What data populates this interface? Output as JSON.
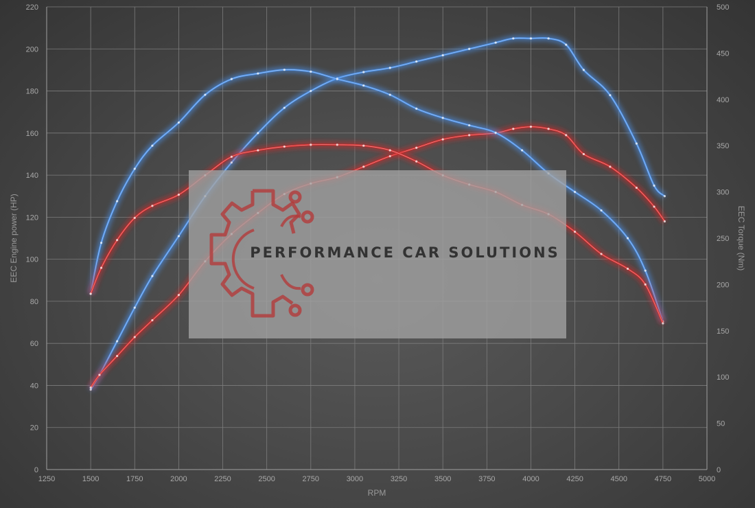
{
  "chart_data": {
    "type": "line",
    "xlabel": "RPM",
    "ylabel": "EEC Engine power (HP)",
    "y2label": "EEC Torque (Nm)",
    "xlim": [
      1250,
      5000
    ],
    "ylim": [
      0,
      220
    ],
    "y2lim": [
      0,
      500
    ],
    "x_ticks": [
      1250,
      1500,
      1750,
      2000,
      2250,
      2500,
      2750,
      3000,
      3250,
      3500,
      3750,
      4000,
      4250,
      4500,
      4750,
      5000
    ],
    "y_ticks": [
      0,
      20,
      40,
      60,
      80,
      100,
      120,
      140,
      160,
      180,
      200,
      220
    ],
    "y2_ticks": [
      0,
      50,
      100,
      150,
      200,
      250,
      300,
      350,
      400,
      450,
      500
    ],
    "grid": true,
    "legend": "none",
    "series": [
      {
        "axis": "left",
        "color": "#4a8fe7",
        "x": [
          1500,
          1550,
          1650,
          1750,
          1850,
          2000,
          2150,
          2300,
          2450,
          2600,
          2750,
          2900,
          3050,
          3200,
          3350,
          3500,
          3650,
          3800,
          3900,
          4000,
          4100,
          4200,
          4300,
          4450,
          4600,
          4700,
          4760
        ],
        "y": [
          38,
          45,
          61,
          77,
          92,
          111,
          130,
          146,
          160,
          172,
          180,
          186,
          189,
          191,
          194,
          197,
          200,
          203,
          205,
          205,
          205,
          202,
          190,
          178,
          155,
          135,
          130
        ]
      },
      {
        "axis": "left",
        "color": "#d42b2b",
        "x": [
          1500,
          1550,
          1650,
          1750,
          1850,
          2000,
          2150,
          2300,
          2450,
          2600,
          2750,
          2900,
          3050,
          3200,
          3350,
          3500,
          3650,
          3800,
          3900,
          4000,
          4100,
          4200,
          4300,
          4450,
          4600,
          4700,
          4760
        ],
        "y": [
          39,
          45,
          54,
          63,
          71,
          83,
          99,
          112,
          122,
          131,
          136,
          139,
          144,
          149,
          153,
          157,
          159,
          160,
          162,
          163,
          162,
          159,
          150,
          144,
          134,
          125,
          118
        ]
      },
      {
        "axis": "right",
        "color": "#4a8fe7",
        "x": [
          1500,
          1560,
          1650,
          1750,
          1850,
          2000,
          2150,
          2300,
          2450,
          2600,
          2750,
          2900,
          3050,
          3200,
          3350,
          3500,
          3650,
          3800,
          3950,
          4100,
          4250,
          4400,
          4550,
          4650,
          4750
        ],
        "y": [
          190,
          245,
          290,
          325,
          350,
          375,
          405,
          422,
          428,
          432,
          430,
          422,
          415,
          405,
          390,
          380,
          372,
          364,
          345,
          320,
          300,
          280,
          250,
          215,
          160
        ]
      },
      {
        "axis": "right",
        "color": "#d42b2b",
        "x": [
          1500,
          1560,
          1650,
          1750,
          1850,
          2000,
          2150,
          2300,
          2450,
          2600,
          2750,
          2900,
          3050,
          3200,
          3350,
          3500,
          3650,
          3800,
          3950,
          4100,
          4250,
          4400,
          4550,
          4650,
          4750
        ],
        "y": [
          190,
          218,
          248,
          272,
          285,
          297,
          318,
          338,
          345,
          349,
          351,
          351,
          350,
          345,
          333,
          318,
          308,
          300,
          286,
          276,
          257,
          233,
          217,
          200,
          158
        ]
      }
    ]
  },
  "watermark": {
    "text": "PERFORMANCE CAR SOLUTIONS",
    "logo": "gear-circuit-logo",
    "logo_color": "#b33b3b",
    "panel_color": "#a3a3a3"
  }
}
